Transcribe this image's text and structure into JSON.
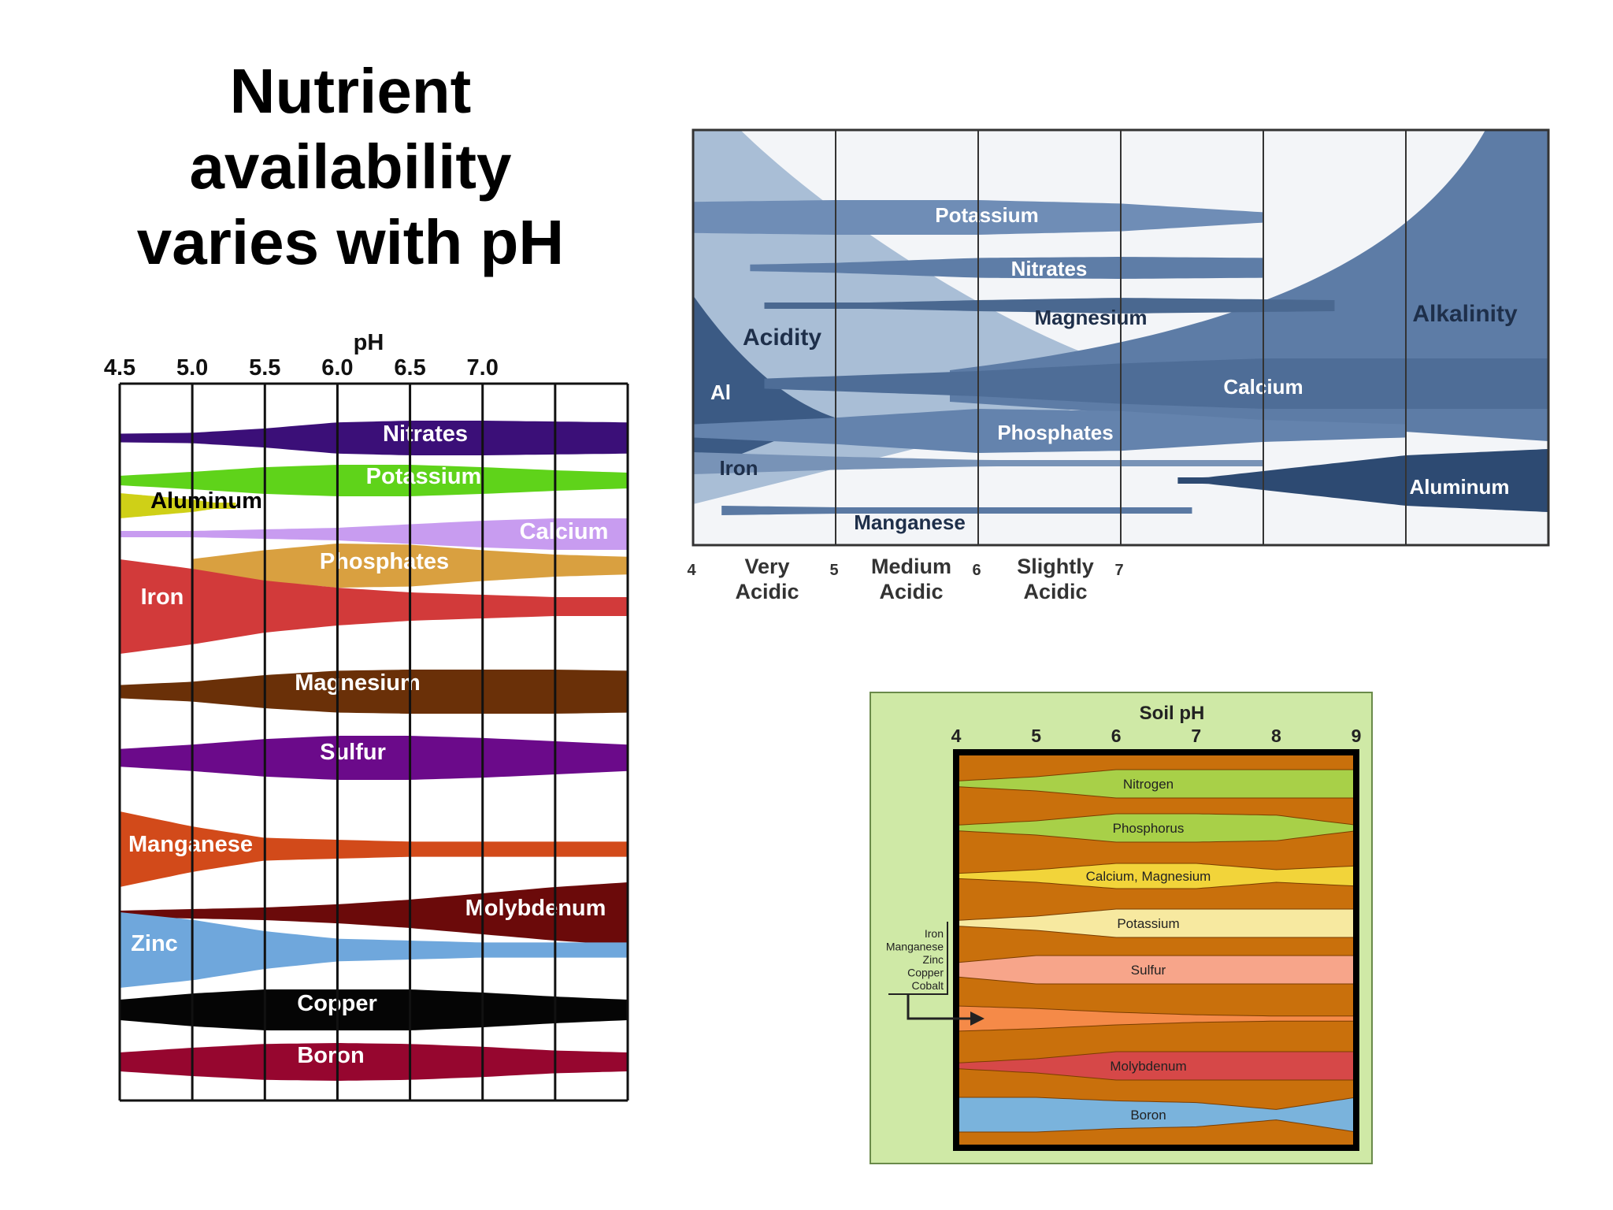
{
  "slide": {
    "title": "Nutrient availability varies with pH"
  },
  "chart_data": [
    {
      "type": "area",
      "title": "",
      "xlabel": "pH",
      "ylabel": "",
      "ticks": [
        "4.5",
        "5.0",
        "5.5",
        "6.0",
        "6.5",
        "7.0"
      ],
      "xlim": [
        4.5,
        8.0
      ],
      "grid": true,
      "series": [
        {
          "name": "Nitrates",
          "color": "#3b0f78",
          "x": [
            4.5,
            5.0,
            5.5,
            6.0,
            6.5,
            7.0,
            7.5,
            8.0
          ],
          "values": [
            0.25,
            0.3,
            0.55,
            0.9,
            1.0,
            1.0,
            0.95,
            0.9
          ]
        },
        {
          "name": "Potassium",
          "color": "#5fd31a",
          "x": [
            4.5,
            5.0,
            5.5,
            6.0,
            6.5,
            7.0,
            7.5,
            8.0
          ],
          "values": [
            0.3,
            0.55,
            0.85,
            1.0,
            1.0,
            0.85,
            0.65,
            0.5
          ]
        },
        {
          "name": "Aluminum",
          "color": "#cfd017",
          "x": [
            4.5,
            5.0,
            5.3
          ],
          "values": [
            1.0,
            0.5,
            0.0
          ]
        },
        {
          "name": "Calcium",
          "color": "#c89cf0",
          "x": [
            4.5,
            5.0,
            6.0,
            7.0,
            7.5,
            8.0
          ],
          "values": [
            0.1,
            0.2,
            0.4,
            0.85,
            1.0,
            1.0
          ]
        },
        {
          "name": "Phosphates",
          "color": "#d9a040",
          "x": [
            5.0,
            5.5,
            6.0,
            6.5,
            7.0,
            7.5,
            8.0
          ],
          "values": [
            0.3,
            0.7,
            1.0,
            0.95,
            0.7,
            0.5,
            0.4
          ]
        },
        {
          "name": "Iron",
          "color": "#d23a3a",
          "x": [
            4.5,
            5.0,
            5.5,
            6.0,
            6.5,
            7.0,
            7.5,
            8.0
          ],
          "values": [
            1.0,
            0.8,
            0.55,
            0.4,
            0.3,
            0.25,
            0.2,
            0.2
          ]
        },
        {
          "name": "Magnesium",
          "color": "#6a3008",
          "x": [
            4.5,
            5.0,
            5.5,
            6.0,
            6.5,
            7.0,
            7.5,
            8.0
          ],
          "values": [
            0.3,
            0.45,
            0.75,
            0.95,
            1.0,
            1.0,
            1.0,
            0.95
          ]
        },
        {
          "name": "Sulfur",
          "color": "#6b0a8a",
          "x": [
            4.5,
            5.0,
            5.5,
            6.0,
            6.5,
            7.0,
            7.5,
            8.0
          ],
          "values": [
            0.4,
            0.6,
            0.85,
            1.0,
            1.0,
            0.9,
            0.75,
            0.6
          ]
        },
        {
          "name": "Manganese",
          "color": "#d24a1a",
          "x": [
            4.5,
            5.0,
            5.5,
            6.0,
            6.5,
            7.0,
            7.5,
            8.0
          ],
          "values": [
            1.0,
            0.6,
            0.3,
            0.25,
            0.2,
            0.2,
            0.2,
            0.2
          ]
        },
        {
          "name": "Molybdenum",
          "color": "#6b0a0a",
          "x": [
            4.5,
            5.0,
            5.5,
            6.0,
            6.5,
            7.0,
            7.5,
            8.0
          ],
          "values": [
            0.1,
            0.15,
            0.2,
            0.3,
            0.45,
            0.65,
            0.85,
            1.0
          ]
        },
        {
          "name": "Zinc",
          "color": "#6fa7dc",
          "x": [
            4.5,
            5.0,
            5.5,
            6.0,
            6.5,
            7.0,
            7.5,
            8.0
          ],
          "values": [
            1.0,
            0.8,
            0.5,
            0.3,
            0.25,
            0.2,
            0.2,
            0.2
          ]
        },
        {
          "name": "Copper",
          "color": "#050505",
          "x": [
            4.5,
            5.0,
            5.5,
            6.0,
            6.5,
            7.0,
            7.5,
            8.0
          ],
          "values": [
            0.5,
            0.8,
            1.0,
            1.0,
            1.0,
            0.85,
            0.65,
            0.5
          ]
        },
        {
          "name": "Boron",
          "color": "#96062f",
          "x": [
            4.5,
            5.0,
            5.5,
            6.0,
            6.5,
            7.0,
            7.5,
            8.0
          ],
          "values": [
            0.5,
            0.75,
            0.95,
            1.0,
            0.95,
            0.8,
            0.6,
            0.5
          ]
        }
      ]
    },
    {
      "type": "area",
      "title": "",
      "xlabel": "",
      "ylabel": "",
      "ticks": [
        "4",
        "5",
        "6",
        "7"
      ],
      "categories": [
        "Very Acidic",
        "Medium Acidic",
        "Slightly Acidic"
      ],
      "xlim": [
        4,
        10
      ],
      "grid": true,
      "regions": [
        {
          "name": "Acidity",
          "color": "#a9bed6",
          "x": [
            4,
            5,
            6,
            7,
            8
          ],
          "values": [
            1.0,
            0.6,
            0.3,
            0.1,
            0.0
          ]
        },
        {
          "name": "Alkalinity",
          "color": "#5d7ca6",
          "x": [
            7,
            8,
            9,
            10
          ],
          "values": [
            0.0,
            0.3,
            0.7,
            1.0
          ]
        }
      ],
      "series": [
        {
          "name": "Potassium",
          "color": "#6f8db6",
          "x": [
            4,
            5,
            6,
            7,
            8
          ],
          "values": [
            0.9,
            1.0,
            1.0,
            0.8,
            0.3
          ]
        },
        {
          "name": "Nitrates",
          "color": "#5e7da7",
          "x": [
            4.4,
            5,
            6,
            7,
            8
          ],
          "values": [
            0.3,
            0.45,
            0.9,
            1.0,
            0.9
          ]
        },
        {
          "name": "Magnesium",
          "color": "#4a6890",
          "x": [
            4.5,
            5,
            6,
            7,
            8.5
          ],
          "values": [
            0.2,
            0.3,
            0.7,
            1.0,
            0.7
          ]
        },
        {
          "name": "Calcium",
          "color": "#4e6d97",
          "x": [
            4.5,
            5,
            6,
            7,
            8,
            9,
            10
          ],
          "values": [
            0.2,
            0.3,
            0.5,
            0.8,
            1.0,
            1.0,
            1.0
          ]
        },
        {
          "name": "Phosphates",
          "color": "#6483ad",
          "x": [
            4,
            5,
            6,
            7,
            8,
            9
          ],
          "values": [
            0.3,
            0.6,
            1.0,
            0.9,
            0.5,
            0.3
          ]
        },
        {
          "name": "Al",
          "color": "#3b5a84",
          "x": [
            4,
            4.5,
            5,
            5.5
          ],
          "values": [
            1.0,
            0.6,
            0.25,
            0.0
          ]
        },
        {
          "name": "Iron",
          "color": "#7893b7",
          "x": [
            4,
            5,
            6,
            7,
            8
          ],
          "values": [
            1.0,
            0.6,
            0.3,
            0.2,
            0.1
          ]
        },
        {
          "name": "Manganese",
          "color": "#5a79a3",
          "x": [
            4.2,
            5,
            6,
            7,
            7.5
          ],
          "values": [
            0.6,
            0.4,
            0.2,
            0.1,
            0.1
          ]
        },
        {
          "name": "Aluminum",
          "color": "#2d4a72",
          "x": [
            7.4,
            8,
            9,
            10
          ],
          "values": [
            0.0,
            0.3,
            0.8,
            1.0
          ]
        }
      ]
    },
    {
      "type": "area",
      "title": "Soil pH",
      "xlabel": "",
      "ylabel": "",
      "ticks": [
        "4",
        "5",
        "6",
        "7",
        "8",
        "9"
      ],
      "xlim": [
        4,
        9
      ],
      "bracket_labels": [
        "Iron",
        "Manganese",
        "Zinc",
        "Copper",
        "Cobalt"
      ],
      "series": [
        {
          "name": "Nitrogen",
          "color": "#a8d048",
          "x": [
            4,
            5,
            6,
            7,
            8,
            9
          ],
          "values": [
            0.2,
            0.5,
            1.0,
            1.0,
            1.0,
            1.0
          ]
        },
        {
          "name": "Phosphorus",
          "color": "#a8d048",
          "x": [
            4,
            5,
            6,
            7,
            8,
            9
          ],
          "values": [
            0.2,
            0.5,
            1.0,
            1.0,
            0.9,
            0.2
          ]
        },
        {
          "name": "Calcium, Magnesium",
          "color": "#f2d43a",
          "x": [
            4,
            5,
            6,
            7,
            8,
            9
          ],
          "values": [
            0.2,
            0.5,
            1.0,
            1.0,
            0.5,
            0.8
          ]
        },
        {
          "name": "Potassium",
          "color": "#f7e9a0",
          "x": [
            4,
            5,
            6,
            7,
            8,
            9
          ],
          "values": [
            0.2,
            0.5,
            1.0,
            1.0,
            1.0,
            1.0
          ]
        },
        {
          "name": "Sulfur",
          "color": "#f7a58a",
          "x": [
            4,
            5,
            6,
            7,
            8,
            9
          ],
          "values": [
            0.5,
            1.0,
            1.0,
            1.0,
            1.0,
            1.0
          ]
        },
        {
          "name": "Iron, Manganese, Zinc, Copper, Cobalt",
          "color": "#f58a48",
          "x": [
            4,
            5,
            6,
            7,
            8,
            9
          ],
          "values": [
            1.0,
            0.8,
            0.5,
            0.3,
            0.2,
            0.2
          ]
        },
        {
          "name": "Molybdenum",
          "color": "#d64848",
          "x": [
            4,
            5,
            6,
            7,
            8,
            9
          ],
          "values": [
            0.2,
            0.5,
            1.0,
            1.0,
            1.0,
            1.0
          ]
        },
        {
          "name": "Boron",
          "color": "#7ab3dc",
          "x": [
            4,
            5,
            6,
            7,
            8,
            9
          ],
          "values": [
            1.0,
            1.0,
            0.8,
            0.7,
            0.3,
            1.0
          ]
        }
      ]
    }
  ]
}
